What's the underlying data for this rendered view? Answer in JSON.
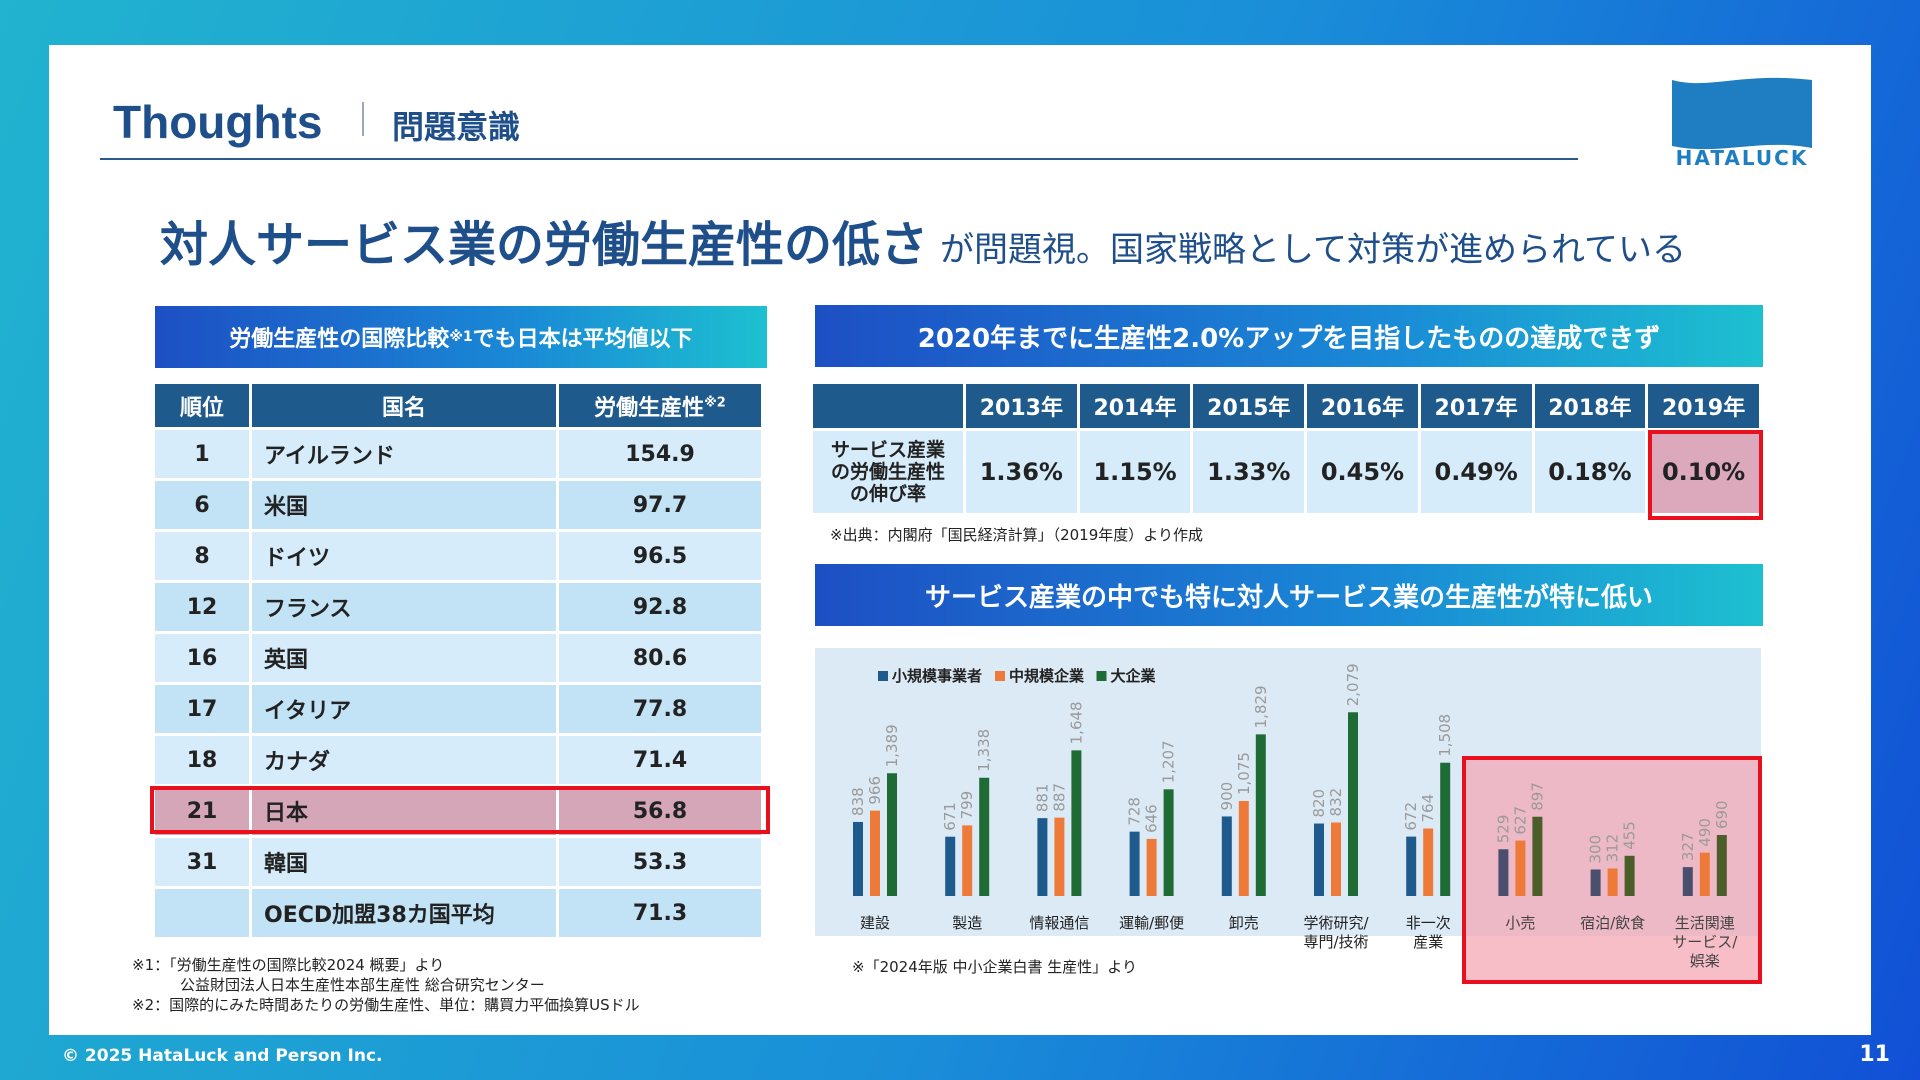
{
  "header": {
    "title": "Thoughts",
    "subtitle": "問題意識"
  },
  "logo": {
    "text": "HATALUCK",
    "color": "#1f7ec2"
  },
  "headline": {
    "strong": "対人サービス業の労働生産性の低さ",
    "rest": "が問題視。国家戦略として対策が進められている"
  },
  "left_panel": {
    "title_pre": "労働生産性の国際比較",
    "title_sup": "※1",
    "title_post": "でも日本は平均値以下",
    "columns": [
      "順位",
      "国名",
      "労働生産性"
    ],
    "col3_sup": "※2",
    "rows": [
      {
        "rank": "1",
        "country": "アイルランド",
        "value": "154.9"
      },
      {
        "rank": "6",
        "country": "米国",
        "value": "97.7"
      },
      {
        "rank": "8",
        "country": "ドイツ",
        "value": "96.5"
      },
      {
        "rank": "12",
        "country": "フランス",
        "value": "92.8"
      },
      {
        "rank": "16",
        "country": "英国",
        "value": "80.6"
      },
      {
        "rank": "17",
        "country": "イタリア",
        "value": "77.8"
      },
      {
        "rank": "18",
        "country": "カナダ",
        "value": "71.4"
      },
      {
        "rank": "21",
        "country": "日本",
        "value": "56.8"
      },
      {
        "rank": "31",
        "country": "韓国",
        "value": "53.3"
      },
      {
        "rank": "",
        "country": "OECD加盟38カ国平均",
        "value": "71.3"
      }
    ],
    "notes": [
      "※1：「労働生産性の国際比較2024 概要」より",
      "公益財団法人日本生産性本部生産性 総合研究センター",
      "※2：国際的にみた時間あたりの労働生産性、単位：購買力平価換算USドル"
    ]
  },
  "growth_panel": {
    "title": "2020年までに生産性2.0%アップを目指したものの達成できず",
    "years": [
      "2013年",
      "2014年",
      "2015年",
      "2016年",
      "2017年",
      "2018年",
      "2019年"
    ],
    "row_label": [
      "サービス産業",
      "の労働生産性",
      "の伸び率"
    ],
    "values": [
      "1.36%",
      "1.15%",
      "1.33%",
      "0.45%",
      "0.49%",
      "0.18%",
      "0.10%"
    ],
    "source": "※出典：内閣府「国民経済計算」（2019年度）より作成"
  },
  "chart_panel": {
    "title": "サービス産業の中でも特に対人サービス業の生産性が特に低い",
    "source": "※「2024年版 中小企業白書 生産性」より"
  },
  "chart_data": {
    "type": "bar",
    "categories": [
      "建設",
      "製造",
      "情報通信",
      "運輸/郵便",
      "卸売",
      "学術研究/\n専門/技術",
      "非一次\n産業",
      "小売",
      "宿泊/飲食",
      "生活関連\nサービス/\n娯楽"
    ],
    "series": [
      {
        "name": "小規模事業者",
        "color": "#1f5a8c",
        "values": [
          838,
          671,
          881,
          728,
          900,
          820,
          672,
          529,
          300,
          327
        ]
      },
      {
        "name": "中規模企業",
        "color": "#ee7a3a",
        "values": [
          966,
          799,
          887,
          646,
          1075,
          832,
          764,
          627,
          312,
          490
        ]
      },
      {
        "name": "大企業",
        "color": "#1e6b36",
        "values": [
          1389,
          1338,
          1648,
          1207,
          1829,
          2079,
          1508,
          897,
          455,
          690
        ]
      }
    ],
    "labels": [
      [
        "838",
        "966",
        "1,389"
      ],
      [
        "671",
        "799",
        "1,338"
      ],
      [
        "881",
        "887",
        "1,648"
      ],
      [
        "728",
        "646",
        "1,207"
      ],
      [
        "900",
        "1,075",
        "1,829"
      ],
      [
        "820",
        "832",
        "2,079"
      ],
      [
        "672",
        "764",
        "1,508"
      ],
      [
        "529",
        "627",
        "897"
      ],
      [
        "300",
        "312",
        "455"
      ],
      [
        "327",
        "490",
        "690"
      ]
    ],
    "highlighted_categories": [
      "小売",
      "宿泊/飲食",
      "生活関連\nサービス/\n娯楽"
    ],
    "legend_position": "top-left",
    "grid": false
  },
  "footer": {
    "copyright": "© 2025 HataLuck and Person Inc.",
    "page": "11"
  }
}
